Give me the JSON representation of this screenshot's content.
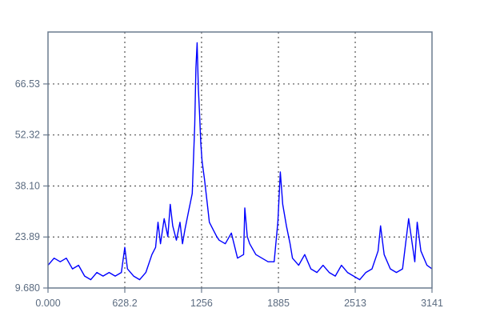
{
  "chart_data": {
    "type": "line",
    "title": "",
    "xlabel": "",
    "ylabel": "",
    "xlim": [
      0,
      3141
    ],
    "ylim": [
      9.68,
      81
    ],
    "x_ticks": [
      0,
      628.2,
      1256,
      1885,
      2513,
      3141
    ],
    "x_tick_labels": [
      "0.000",
      "628.2",
      "1256",
      "1885",
      "2513",
      "3141"
    ],
    "y_ticks": [
      9.68,
      23.89,
      38.1,
      52.32,
      66.53
    ],
    "y_tick_labels": [
      "9.680",
      "23.89",
      "38.10",
      "52.32",
      "66.53"
    ],
    "grid": true,
    "line_color": "#0000ff",
    "series": [
      {
        "x": [
          0,
          50,
          100,
          150,
          200,
          250,
          300,
          350,
          400,
          450,
          500,
          550,
          600,
          628,
          650,
          700,
          750,
          800,
          850,
          880,
          900,
          920,
          950,
          980,
          1000,
          1020,
          1050,
          1080,
          1100,
          1120,
          1150,
          1180,
          1200,
          1210,
          1220,
          1230,
          1240,
          1250,
          1260,
          1280,
          1300,
          1320,
          1350,
          1380,
          1400,
          1450,
          1500,
          1550,
          1600,
          1610,
          1630,
          1650,
          1700,
          1750,
          1800,
          1850,
          1880,
          1900,
          1920,
          1950,
          1980,
          2000,
          2050,
          2100,
          2150,
          2200,
          2250,
          2300,
          2350,
          2400,
          2450,
          2500,
          2550,
          2600,
          2650,
          2700,
          2720,
          2750,
          2800,
          2850,
          2900,
          2950,
          3000,
          3020,
          3050,
          3100,
          3141
        ],
        "y": [
          16,
          18,
          17,
          18,
          15,
          16,
          13,
          12,
          14,
          13,
          14,
          13,
          14,
          21,
          15,
          13,
          12,
          14,
          19,
          21,
          28,
          22,
          29,
          24,
          33,
          27,
          23,
          28,
          22,
          26,
          31,
          36,
          55,
          71,
          78,
          65,
          58,
          50,
          45,
          40,
          34,
          28,
          26,
          24,
          23,
          22,
          25,
          18,
          19,
          32,
          24,
          22,
          19,
          18,
          17,
          17,
          28,
          42,
          33,
          27,
          22,
          18,
          16,
          19,
          15,
          14,
          16,
          14,
          13,
          16,
          14,
          13,
          12,
          14,
          15,
          20,
          27,
          19,
          15,
          14,
          15,
          29,
          17,
          28,
          20,
          16,
          15
        ]
      }
    ]
  }
}
